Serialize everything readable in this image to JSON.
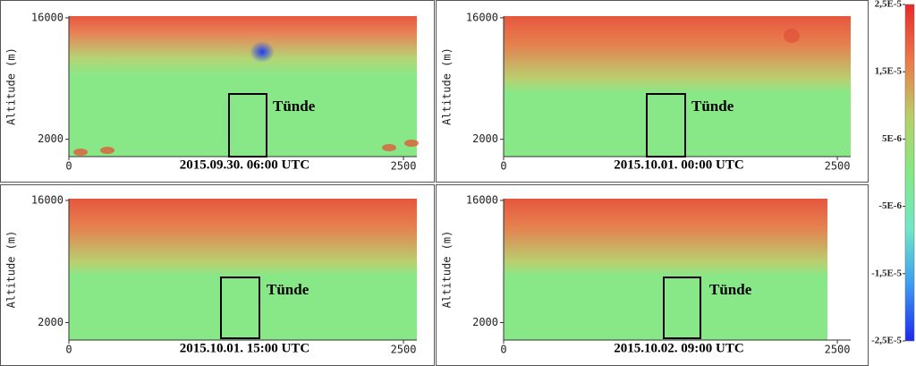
{
  "chart_data": [
    {
      "type": "heatmap",
      "title": "2015.09.30. 06:00 UTC",
      "ylabel": "Altitude (m)",
      "annotation": "Tünde",
      "xlim": [
        0,
        2600
      ],
      "xticks": [
        0,
        2500
      ],
      "ylim": [
        0,
        16200
      ],
      "yticks": [
        2000,
        16000
      ]
    },
    {
      "type": "heatmap",
      "title": "2015.10.01. 00:00 UTC",
      "ylabel": "Altitude (m)",
      "annotation": "Tünde",
      "xlim": [
        0,
        2600
      ],
      "xticks": [
        0,
        2500
      ],
      "ylim": [
        0,
        16200
      ],
      "yticks": [
        2000,
        16000
      ]
    },
    {
      "type": "heatmap",
      "title": "2015.10.01. 15:00 UTC",
      "ylabel": "Altitude (m)",
      "annotation": "Tünde",
      "xlim": [
        0,
        2600
      ],
      "xticks": [
        0,
        2500
      ],
      "ylim": [
        0,
        16200
      ],
      "yticks": [
        2000,
        16000
      ]
    },
    {
      "type": "heatmap",
      "title": "2015.10.02. 09:00 UTC",
      "ylabel": "Altitude (m)",
      "annotation": "Tünde",
      "xlim": [
        0,
        2600
      ],
      "xticks": [
        0,
        2500
      ],
      "ylim": [
        0,
        16200
      ],
      "yticks": [
        2000,
        16000
      ]
    },
    {
      "type": "colorbar",
      "ylim": [
        -2.5e-05,
        2.5e-05
      ],
      "yticks": [
        {
          "value": 2.5e-05,
          "label": "2,5E-5"
        },
        {
          "value": 1.5e-05,
          "label": "1,5E-5"
        },
        {
          "value": 5e-06,
          "label": "5E-6"
        },
        {
          "value": -5e-06,
          "label": "-5E-6"
        },
        {
          "value": -1.5e-05,
          "label": "-1,5E-5"
        },
        {
          "value": -2.5e-05,
          "label": "-2,5E-5"
        }
      ],
      "colors": [
        "#e82a2a",
        "#ec7a4a",
        "#b8d068",
        "#84e884",
        "#70e8c8",
        "#3c9cf0",
        "#1e28f0"
      ]
    }
  ]
}
